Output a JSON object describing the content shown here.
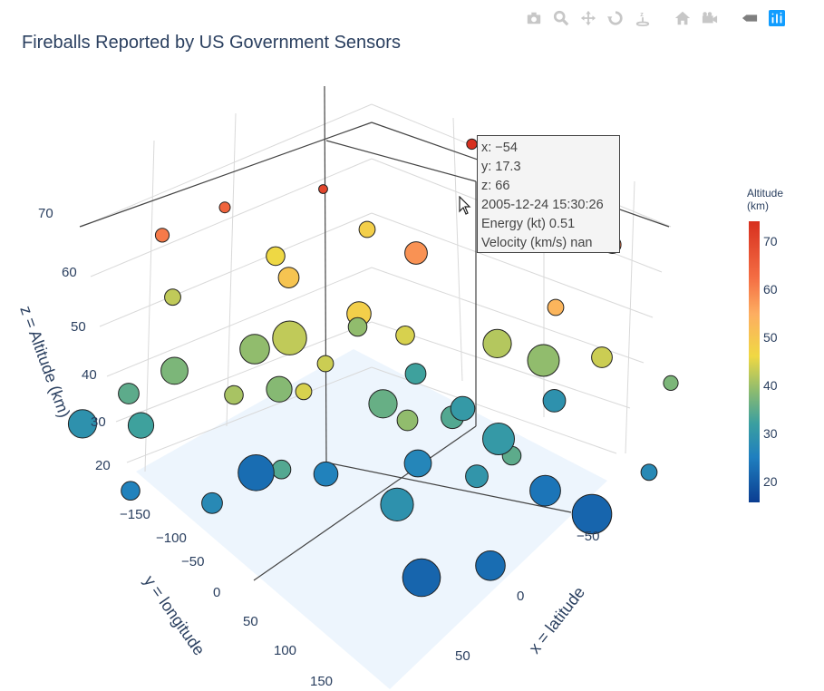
{
  "title": "Fireballs Reported by US Government Sensors",
  "modebar": {
    "icons": [
      "camera-icon",
      "zoom-icon",
      "pan-icon",
      "orbit-icon",
      "turntable-icon",
      "home-icon",
      "camera-view-icon",
      "toggle-hover-icon",
      "plotly-logo-icon"
    ]
  },
  "tooltip": {
    "x": "x: −54",
    "y": "y: 17.3",
    "z": "z: 66",
    "date": "2005-12-24 15:30:26",
    "energy": "Energy (kt) 0.51",
    "velocity": "Velocity (km/s) nan"
  },
  "colorbar": {
    "title_line1": "Altitude",
    "title_line2": "(km)",
    "ticks": [
      "70",
      "60",
      "50",
      "40",
      "30",
      "20"
    ],
    "colors": [
      "#0b3d91",
      "#1f7fbf",
      "#3a9fa0",
      "#8fbc6e",
      "#f0d843",
      "#fdae61",
      "#f46d43",
      "#d7301f"
    ]
  },
  "chart_data": {
    "type": "scatter",
    "title": "Fireballs Reported by US Government Sensors",
    "xlabel": "x = latitude",
    "ylabel": "y = longitude",
    "zlabel": "z = Altitude (km)",
    "x_ticks": [
      "−50",
      "0",
      "50"
    ],
    "y_ticks": [
      "−150",
      "−100",
      "−50",
      "0",
      "50",
      "100",
      "150"
    ],
    "z_ticks": [
      "20",
      "30",
      "40",
      "50",
      "60",
      "70"
    ],
    "xlim": [
      -80,
      80
    ],
    "ylim": [
      -180,
      180
    ],
    "zlim": [
      15,
      75
    ],
    "color_range": [
      15,
      73
    ],
    "points": [
      {
        "x": -54,
        "y": 17.3,
        "z": 66,
        "e": 0.51
      },
      {
        "x": 10,
        "y": -160,
        "z": 72,
        "e": 0.3
      },
      {
        "x": -20,
        "y": -130,
        "z": 73,
        "e": 0.4
      },
      {
        "x": 30,
        "y": -150,
        "z": 63,
        "e": 2.5
      },
      {
        "x": -35,
        "y": -30,
        "z": 70,
        "e": 0.2
      },
      {
        "x": -60,
        "y": 60,
        "z": 63,
        "e": 1.2
      },
      {
        "x": -10,
        "y": -60,
        "z": 60,
        "e": 5.0
      },
      {
        "x": 40,
        "y": -120,
        "z": 45,
        "e": 4.0
      },
      {
        "x": 50,
        "y": -160,
        "z": 38,
        "e": 1.5
      },
      {
        "x": 20,
        "y": -110,
        "z": 40,
        "e": 12.0
      },
      {
        "x": 10,
        "y": -90,
        "z": 43,
        "e": 9.0
      },
      {
        "x": -5,
        "y": -40,
        "z": 46,
        "e": 3.0
      },
      {
        "x": -15,
        "y": -20,
        "z": 50,
        "e": 6.0
      },
      {
        "x": -30,
        "y": 10,
        "z": 44,
        "e": 14.0
      },
      {
        "x": -40,
        "y": 20,
        "z": 40,
        "e": 10.0
      },
      {
        "x": -20,
        "y": 40,
        "z": 39,
        "e": 7.0
      },
      {
        "x": -50,
        "y": 70,
        "z": 38,
        "e": 8.0
      },
      {
        "x": -10,
        "y": 20,
        "z": 45,
        "e": 2.0
      },
      {
        "x": 0,
        "y": -10,
        "z": 36,
        "e": 9.0
      },
      {
        "x": 25,
        "y": -60,
        "z": 30,
        "e": 12.0
      },
      {
        "x": 40,
        "y": -70,
        "z": 22,
        "e": 11.0
      },
      {
        "x": 55,
        "y": -80,
        "z": 20,
        "e": 20.0
      },
      {
        "x": 10,
        "y": -20,
        "z": 25,
        "e": 8.0
      },
      {
        "x": -5,
        "y": 30,
        "z": 24,
        "e": 6.0
      },
      {
        "x": -25,
        "y": 50,
        "z": 21,
        "e": 16.0
      },
      {
        "x": 30,
        "y": 40,
        "z": 28,
        "e": 13.0
      },
      {
        "x": 50,
        "y": 60,
        "z": 20,
        "e": 18.0
      },
      {
        "x": 60,
        "y": 20,
        "z": 21,
        "e": 10.0
      },
      {
        "x": -45,
        "y": 110,
        "z": 32,
        "e": 7.0
      },
      {
        "x": -65,
        "y": 120,
        "z": 28,
        "e": 9.0
      },
      {
        "x": -55,
        "y": 100,
        "z": 35,
        "e": 4.0
      },
      {
        "x": 15,
        "y": -40,
        "z": 34,
        "e": 5.0
      },
      {
        "x": 5,
        "y": -70,
        "z": 30,
        "e": 6.0
      },
      {
        "x": 35,
        "y": -20,
        "z": 29,
        "e": 5.0
      },
      {
        "x": -15,
        "y": -70,
        "z": 32,
        "e": 4.0
      },
      {
        "x": -30,
        "y": -50,
        "z": 40,
        "e": 3.0
      },
      {
        "x": -40,
        "y": -10,
        "z": 52,
        "e": 4.0
      },
      {
        "x": 45,
        "y": -30,
        "z": 35,
        "e": 3.0
      },
      {
        "x": 20,
        "y": 10,
        "z": 40,
        "e": 4.0
      },
      {
        "x": 0,
        "y": 60,
        "z": 46,
        "e": 2.0
      },
      {
        "x": -20,
        "y": 80,
        "z": 42,
        "e": 3.0
      },
      {
        "x": -60,
        "y": -40,
        "z": 48,
        "e": 3.0
      },
      {
        "x": -70,
        "y": 30,
        "z": 44,
        "e": 2.0
      },
      {
        "x": 30,
        "y": -100,
        "z": 55,
        "e": 2.0
      },
      {
        "x": 15,
        "y": -130,
        "z": 28,
        "e": 5.0
      },
      {
        "x": -10,
        "y": 120,
        "z": 26,
        "e": 4.0
      },
      {
        "x": -35,
        "y": 140,
        "z": 24,
        "e": 3.0
      },
      {
        "x": 60,
        "y": -120,
        "z": 26,
        "e": 2.0
      },
      {
        "x": -50,
        "y": -100,
        "z": 50,
        "e": 2.0
      },
      {
        "x": 5,
        "y": 90,
        "z": 34,
        "e": 3.0
      }
    ]
  }
}
